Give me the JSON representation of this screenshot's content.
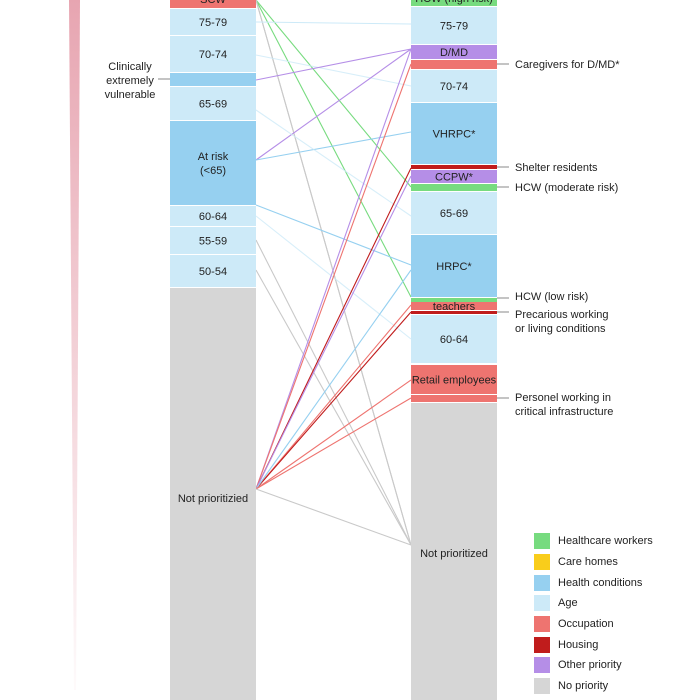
{
  "colors": {
    "healthcare": "#77db7f",
    "care_homes": "#f9cd1b",
    "health_conditions": "#96d0f0",
    "age": "#cdeaf8",
    "occupation": "#ee7470",
    "housing": "#c01c1c",
    "other": "#b58ee7",
    "none": "#d6d6d6",
    "gradient": "#e7a5b1"
  },
  "left_column": {
    "items": [
      {
        "label": "SCW",
        "cat": "occupation"
      },
      {
        "label": "75-79",
        "cat": "age"
      },
      {
        "label": "70-74",
        "cat": "age"
      },
      {
        "label": "",
        "cat": "health_conditions"
      },
      {
        "label": "65-69",
        "cat": "age"
      },
      {
        "label": "At risk",
        "label2": "(<65)",
        "cat": "health_conditions"
      },
      {
        "label": "60-64",
        "cat": "age"
      },
      {
        "label": "55-59",
        "cat": "age"
      },
      {
        "label": "50-54",
        "cat": "age"
      },
      {
        "label": "Not prioritizied",
        "cat": "none"
      }
    ],
    "side_annotation": [
      "Clinically",
      "extremely",
      "vulnerable"
    ]
  },
  "right_column": {
    "items": [
      {
        "label": "HCW (high risk)",
        "cat": "healthcare"
      },
      {
        "label": "75-79",
        "cat": "age"
      },
      {
        "label": "D/MD",
        "cat": "other"
      },
      {
        "label": "",
        "cat": "occupation"
      },
      {
        "label": "70-74",
        "cat": "age"
      },
      {
        "label": "VHRPC*",
        "cat": "health_conditions"
      },
      {
        "label": "",
        "cat": "housing"
      },
      {
        "label": "CCPW*",
        "cat": "other"
      },
      {
        "label": "",
        "cat": "healthcare"
      },
      {
        "label": "65-69",
        "cat": "age"
      },
      {
        "label": "HRPC*",
        "cat": "health_conditions"
      },
      {
        "label": "",
        "cat": "healthcare"
      },
      {
        "label": "teachers",
        "cat": "occupation"
      },
      {
        "label": "",
        "cat": "housing"
      },
      {
        "label": "60-64",
        "cat": "age"
      },
      {
        "label": "Retail employees",
        "cat": "occupation"
      },
      {
        "label": "",
        "cat": "occupation"
      },
      {
        "label": "Not prioritized",
        "cat": "none"
      }
    ],
    "side_annotations": [
      {
        "lines": [
          "Caregivers for D/MD*"
        ]
      },
      {
        "lines": [
          "Shelter residents"
        ]
      },
      {
        "lines": [
          "HCW (moderate risk)"
        ]
      },
      {
        "lines": [
          "HCW (low risk)"
        ]
      },
      {
        "lines": [
          "Precarious working",
          "or living conditions"
        ]
      },
      {
        "lines": [
          "Personel working in",
          "critical infrastructure"
        ]
      }
    ]
  },
  "legend": [
    {
      "label": "Healthcare workers",
      "cat": "healthcare"
    },
    {
      "label": "Care homes",
      "cat": "care_homes"
    },
    {
      "label": "Health conditions",
      "cat": "health_conditions"
    },
    {
      "label": "Age",
      "cat": "age"
    },
    {
      "label": "Occupation",
      "cat": "occupation"
    },
    {
      "label": "Housing",
      "cat": "housing"
    },
    {
      "label": "Other priority",
      "cat": "other"
    },
    {
      "label": "No priority",
      "cat": "none"
    }
  ]
}
